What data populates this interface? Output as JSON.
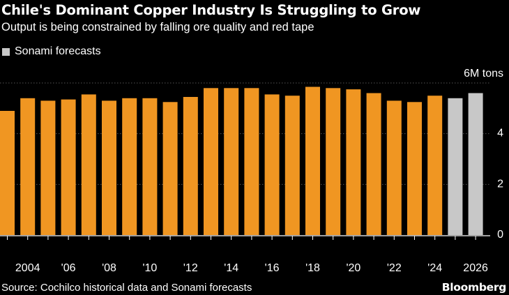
{
  "header": {
    "title": "Chile's Dominant Copper Industry Is Struggling to Grow",
    "subtitle": "Output is being constrained by falling ore quality and red tape"
  },
  "legend": {
    "label": "Sonami forecasts",
    "color": "#c8c8c8"
  },
  "footer": {
    "source": "Source: Cochilco historical data and Sonami forecasts",
    "brand": "Bloomberg"
  },
  "chart_data": {
    "type": "bar",
    "unit_label": "6M tons",
    "years": [
      2003,
      2004,
      2005,
      2006,
      2007,
      2008,
      2009,
      2010,
      2011,
      2012,
      2013,
      2014,
      2015,
      2016,
      2017,
      2018,
      2019,
      2020,
      2021,
      2022,
      2023,
      2024,
      2025,
      2026
    ],
    "values": [
      4.9,
      5.4,
      5.3,
      5.35,
      5.55,
      5.3,
      5.4,
      5.4,
      5.25,
      5.45,
      5.8,
      5.8,
      5.8,
      5.55,
      5.5,
      5.85,
      5.8,
      5.75,
      5.6,
      5.3,
      5.25,
      5.5,
      5.4,
      5.6
    ],
    "forecast_from": 2025,
    "ylim": [
      0,
      6
    ],
    "yticks": [
      0,
      2,
      4
    ],
    "top_tick_label": "6M tons",
    "xtick_labels": [
      {
        "year": 2004,
        "label": "2004"
      },
      {
        "year": 2006,
        "label": "'06"
      },
      {
        "year": 2008,
        "label": "'08"
      },
      {
        "year": 2010,
        "label": "'10"
      },
      {
        "year": 2012,
        "label": "'12"
      },
      {
        "year": 2014,
        "label": "'14"
      },
      {
        "year": 2016,
        "label": "'16"
      },
      {
        "year": 2018,
        "label": "'18"
      },
      {
        "year": 2020,
        "label": "'20"
      },
      {
        "year": 2022,
        "label": "'22"
      },
      {
        "year": 2024,
        "label": "'24"
      },
      {
        "year": 2026,
        "label": "2026"
      }
    ],
    "colors": {
      "historical": "#f09622",
      "forecast": "#c8c8c8",
      "grid": "#555555"
    },
    "grid": true
  }
}
